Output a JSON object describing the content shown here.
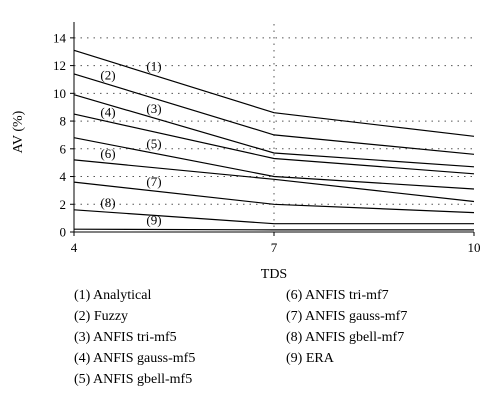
{
  "chart_data": {
    "type": "line",
    "xlabel": "TDS",
    "ylabel": "AV (%)",
    "x": [
      4,
      7,
      10
    ],
    "xlim": [
      4,
      10
    ],
    "ylim": [
      0,
      15
    ],
    "x_ticks": [
      "4",
      "7",
      "10"
    ],
    "y_ticks": [
      "0",
      "2",
      "4",
      "6",
      "8",
      "10",
      "12",
      "14"
    ],
    "grid": "dotted",
    "legend_position": "bottom",
    "series": [
      {
        "tag": "(1)",
        "name": "Analytical",
        "values": [
          13.1,
          8.6,
          6.9
        ]
      },
      {
        "tag": "(2)",
        "name": "Fuzzy",
        "values": [
          11.4,
          7.0,
          5.6
        ]
      },
      {
        "tag": "(3)",
        "name": "ANFIS tri-mf5",
        "values": [
          9.9,
          5.7,
          4.7
        ]
      },
      {
        "tag": "(4)",
        "name": "ANFIS gauss-mf5",
        "values": [
          8.5,
          5.3,
          4.2
        ]
      },
      {
        "tag": "(5)",
        "name": "ANFIS gbell-mf5",
        "values": [
          6.8,
          4.0,
          3.1
        ]
      },
      {
        "tag": "(6)",
        "name": "ANFIS tri-mf7",
        "values": [
          5.2,
          3.8,
          2.2
        ]
      },
      {
        "tag": "(7)",
        "name": "ANFIS gauss-mf7",
        "values": [
          3.6,
          2.0,
          1.4
        ]
      },
      {
        "tag": "(8)",
        "name": "ANFIS gbell-mf7",
        "values": [
          1.6,
          0.6,
          0.6
        ]
      },
      {
        "tag": "(9)",
        "name": "ERA",
        "values": [
          0.2,
          0.15,
          0.15
        ]
      }
    ]
  }
}
